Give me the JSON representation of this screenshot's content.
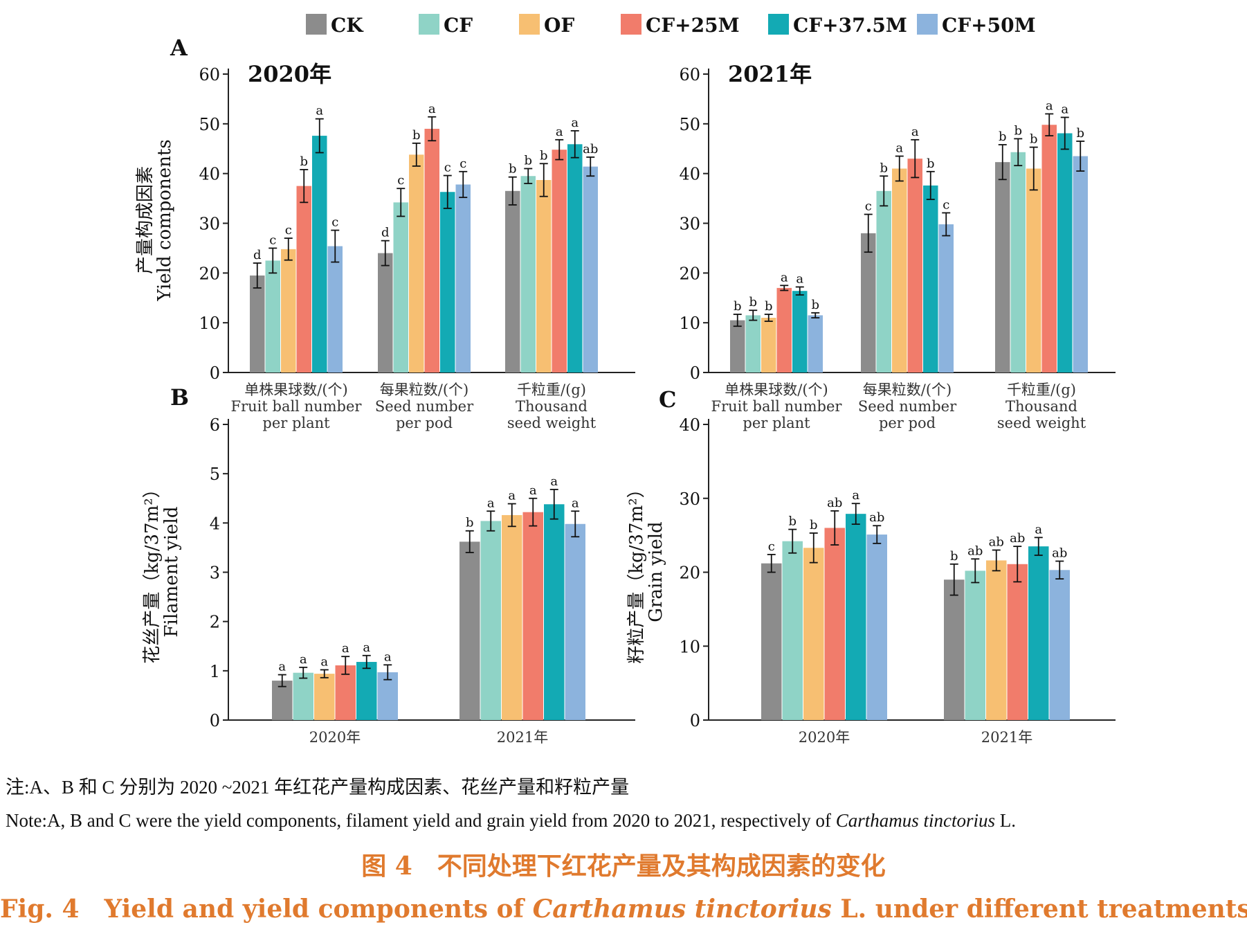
{
  "legend": [
    {
      "label": "CK",
      "color": "#8c8c8c"
    },
    {
      "label": "CF",
      "color": "#8fd3c6"
    },
    {
      "label": "OF",
      "color": "#f7bf72"
    },
    {
      "label": "CF+25M",
      "color": "#f17c6b"
    },
    {
      "label": "CF+37.5M",
      "color": "#13aab4"
    },
    {
      "label": "CF+50M",
      "color": "#8cb3dd"
    }
  ],
  "note": {
    "zh": "注:A、B 和 C 分别为 2020 ~2021 年红花产量构成因素、花丝产量和籽粒产量",
    "en_prefix": "Note:A, B and C were the yield components, filament yield and grain yield from 2020 to 2021, respectively of ",
    "en_species": "Carthamus tinctorius",
    "en_suffix": " L."
  },
  "caption": {
    "zh": "图 4　不同处理下红花产量及其构成因素的变化",
    "en_prefix": "Fig. 4　Yield and yield components of ",
    "en_species": "Carthamus tinctorius",
    "en_suffix": " L.  under different treatments"
  },
  "chart_data": [
    {
      "panel": "A",
      "title": "2020年",
      "type": "bar",
      "ylabel_zh": "产量构成因素",
      "ylabel_en": "Yield components",
      "ylim": [
        0,
        60
      ],
      "yticks": [
        0,
        10,
        20,
        30,
        40,
        50,
        60
      ],
      "categories": [
        [
          "单株果球数/(个)",
          "Fruit ball number",
          "per plant"
        ],
        [
          "每果粒数/(个)",
          "Seed number",
          "per pod"
        ],
        [
          "千粒重/(g)",
          "Thousand",
          "seed weight"
        ]
      ],
      "series": [
        {
          "name": "CK",
          "values": [
            19.5,
            24.0,
            36.5
          ],
          "errors": [
            2.5,
            2.5,
            2.8
          ],
          "letters": [
            "d",
            "d",
            "b"
          ]
        },
        {
          "name": "CF",
          "values": [
            22.5,
            34.2,
            39.5
          ],
          "errors": [
            2.5,
            2.8,
            1.5
          ],
          "letters": [
            "c",
            "c",
            "b"
          ]
        },
        {
          "name": "OF",
          "values": [
            24.8,
            43.8,
            38.7
          ],
          "errors": [
            2.2,
            2.3,
            3.3
          ],
          "letters": [
            "c",
            "b",
            "b"
          ]
        },
        {
          "name": "CF+25M",
          "values": [
            37.5,
            49.0,
            44.8
          ],
          "errors": [
            3.3,
            2.4,
            2.0
          ],
          "letters": [
            "b",
            "a",
            "a"
          ]
        },
        {
          "name": "CF+37.5M",
          "values": [
            47.6,
            36.3,
            45.9
          ],
          "errors": [
            3.4,
            3.3,
            2.7
          ],
          "letters": [
            "a",
            "c",
            "a"
          ]
        },
        {
          "name": "CF+50M",
          "values": [
            25.4,
            37.8,
            41.4
          ],
          "errors": [
            3.2,
            2.6,
            1.9
          ],
          "letters": [
            "c",
            "c",
            "ab"
          ]
        }
      ]
    },
    {
      "panel": "",
      "title": "2021年",
      "type": "bar",
      "ylim": [
        0,
        60
      ],
      "yticks": [
        0,
        10,
        20,
        30,
        40,
        50,
        60
      ],
      "categories": [
        [
          "单株果球数/(个)",
          "Fruit ball number",
          "per plant"
        ],
        [
          "每果粒数/(个)",
          "Seed number",
          "per pod"
        ],
        [
          "千粒重/(g)",
          "Thousand",
          "seed weight"
        ]
      ],
      "series": [
        {
          "name": "CK",
          "values": [
            10.5,
            28.0,
            42.3
          ],
          "errors": [
            1.2,
            3.8,
            3.5
          ],
          "letters": [
            "b",
            "c",
            "b"
          ]
        },
        {
          "name": "CF",
          "values": [
            11.5,
            36.5,
            44.3
          ],
          "errors": [
            1.0,
            3.0,
            2.7
          ],
          "letters": [
            "b",
            "b",
            "b"
          ]
        },
        {
          "name": "OF",
          "values": [
            11.0,
            41.0,
            41.0
          ],
          "errors": [
            0.7,
            2.5,
            4.3
          ],
          "letters": [
            "b",
            "a",
            "b"
          ]
        },
        {
          "name": "CF+25M",
          "values": [
            17.0,
            43.0,
            49.8
          ],
          "errors": [
            0.5,
            3.8,
            2.2
          ],
          "letters": [
            "a",
            "a",
            "a"
          ]
        },
        {
          "name": "CF+37.5M",
          "values": [
            16.4,
            37.6,
            48.1
          ],
          "errors": [
            0.8,
            2.8,
            3.2
          ],
          "letters": [
            "a",
            "b",
            "a"
          ]
        },
        {
          "name": "CF+50M",
          "values": [
            11.5,
            29.8,
            43.5
          ],
          "errors": [
            0.5,
            2.3,
            3.0
          ],
          "letters": [
            "b",
            "c",
            "b"
          ]
        }
      ]
    },
    {
      "panel": "B",
      "title": "",
      "type": "bar",
      "ylabel_zh": "花丝产量（kg/37m²）",
      "ylabel_en": "Filament yield",
      "ylim": [
        0,
        6
      ],
      "yticks": [
        0,
        1,
        2,
        3,
        4,
        5,
        6
      ],
      "categories": [
        [
          "2020年"
        ],
        [
          "2021年"
        ]
      ],
      "series": [
        {
          "name": "CK",
          "values": [
            0.8,
            3.62
          ],
          "errors": [
            0.12,
            0.22
          ],
          "letters": [
            "a",
            "b"
          ]
        },
        {
          "name": "CF",
          "values": [
            0.96,
            4.04
          ],
          "errors": [
            0.11,
            0.2
          ],
          "letters": [
            "a",
            "a"
          ]
        },
        {
          "name": "OF",
          "values": [
            0.94,
            4.16
          ],
          "errors": [
            0.08,
            0.23
          ],
          "letters": [
            "a",
            "a"
          ]
        },
        {
          "name": "CF+25M",
          "values": [
            1.11,
            4.22
          ],
          "errors": [
            0.18,
            0.28
          ],
          "letters": [
            "a",
            "a"
          ]
        },
        {
          "name": "CF+37.5M",
          "values": [
            1.18,
            4.38
          ],
          "errors": [
            0.13,
            0.3
          ],
          "letters": [
            "a",
            "a"
          ]
        },
        {
          "name": "CF+50M",
          "values": [
            0.97,
            3.98
          ],
          "errors": [
            0.15,
            0.26
          ],
          "letters": [
            "a",
            "a"
          ]
        }
      ]
    },
    {
      "panel": "C",
      "title": "",
      "type": "bar",
      "ylabel_zh": "籽粒产量（kg/37m²）",
      "ylabel_en": "Grain yield",
      "ylim": [
        0,
        40
      ],
      "yticks": [
        0,
        10,
        20,
        30,
        40
      ],
      "categories": [
        [
          "2020年"
        ],
        [
          "2021年"
        ]
      ],
      "series": [
        {
          "name": "CK",
          "values": [
            21.2,
            19.0
          ],
          "errors": [
            1.2,
            2.1
          ],
          "letters": [
            "c",
            "b"
          ]
        },
        {
          "name": "CF",
          "values": [
            24.2,
            20.2
          ],
          "errors": [
            1.6,
            1.6
          ],
          "letters": [
            "b",
            "ab"
          ]
        },
        {
          "name": "OF",
          "values": [
            23.3,
            21.6
          ],
          "errors": [
            2.0,
            1.4
          ],
          "letters": [
            "b",
            "ab"
          ]
        },
        {
          "name": "CF+25M",
          "values": [
            26.0,
            21.1
          ],
          "errors": [
            2.3,
            2.4
          ],
          "letters": [
            "ab",
            "ab"
          ]
        },
        {
          "name": "CF+37.5M",
          "values": [
            27.9,
            23.5
          ],
          "errors": [
            1.4,
            1.2
          ],
          "letters": [
            "a",
            "a"
          ]
        },
        {
          "name": "CF+50M",
          "values": [
            25.1,
            20.3
          ],
          "errors": [
            1.2,
            1.2
          ],
          "letters": [
            "ab",
            "ab"
          ]
        }
      ]
    }
  ]
}
